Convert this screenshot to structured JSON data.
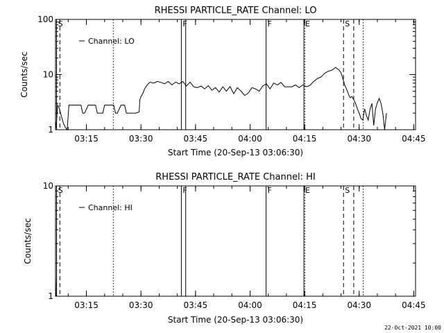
{
  "chart_data": [
    {
      "type": "line",
      "title": "RHESSI PARTICLE_RATE Channel: LO",
      "xlabel": "Start Time (20-Sep-13 03:06:30)",
      "ylabel": "Counts/sec",
      "x_unit": "minutes since 03:06:30",
      "xlim": [
        0,
        99
      ],
      "ylim": [
        1,
        100
      ],
      "yscale": "log",
      "x_ticks": [
        {
          "x": 8.5,
          "label": "03:15"
        },
        {
          "x": 23.5,
          "label": "03:30"
        },
        {
          "x": 38.5,
          "label": "03:45"
        },
        {
          "x": 53.5,
          "label": "04:00"
        },
        {
          "x": 68.5,
          "label": "04:15"
        },
        {
          "x": 83.5,
          "label": "04:30"
        },
        {
          "x": 98.5,
          "label": "04:45"
        }
      ],
      "y_ticks": [
        {
          "y": 1,
          "label": "1"
        },
        {
          "y": 10,
          "label": "10"
        },
        {
          "y": 100,
          "label": "100"
        }
      ],
      "legend": {
        "position": "top-left",
        "entries": [
          "Channel: LO"
        ]
      },
      "series": [
        {
          "name": "Channel: LO",
          "x": [
            0,
            0.3,
            0.6,
            1,
            1.4,
            1.8,
            2.2,
            2.7,
            3.2,
            3.7,
            4.2,
            5,
            6,
            7,
            7.5,
            8,
            9,
            10,
            11,
            11.5,
            12,
            13,
            13.5,
            14,
            15,
            16,
            16.5,
            17,
            18,
            19,
            19.5,
            20,
            21,
            22,
            23,
            23.2,
            23.5,
            24,
            24.5,
            25,
            25.5,
            26,
            27,
            28,
            29,
            30,
            31,
            32,
            33,
            34,
            35,
            36,
            37,
            38,
            39,
            40,
            41,
            42,
            43,
            44,
            45,
            46,
            47,
            48,
            49,
            50,
            51,
            52,
            53,
            54,
            55,
            56,
            57,
            58,
            59,
            60,
            61,
            62,
            63,
            64,
            65,
            66,
            67,
            68,
            69,
            70,
            71,
            72,
            73,
            74,
            75,
            76,
            77,
            78,
            78.5,
            79,
            79.5,
            80,
            80.5,
            81,
            81.5,
            82,
            82.5,
            83,
            83.5,
            84,
            84.5,
            85,
            85.5,
            86,
            86.5,
            87,
            87.5,
            88,
            88.5,
            89,
            89.5,
            90,
            90.5,
            91
          ],
          "values": [
            1.0,
            1.5,
            2.8,
            2.5,
            2.0,
            1.6,
            1.3,
            1.1,
            1.0,
            2.8,
            2.8,
            2.8,
            2.8,
            2.8,
            2.0,
            2.0,
            2.8,
            2.8,
            2.8,
            2.0,
            2.0,
            2.0,
            2.8,
            2.8,
            2.8,
            2.8,
            2.0,
            2.0,
            2.8,
            2.8,
            2.0,
            2.0,
            2.0,
            2.0,
            2.1,
            3.5,
            4.0,
            4.5,
            5.5,
            6.2,
            6.8,
            7.3,
            7.0,
            7.5,
            7.2,
            6.8,
            7.5,
            6.5,
            7.3,
            6.8,
            7.5,
            6.2,
            7.3,
            6.0,
            5.8,
            6.2,
            5.5,
            6.3,
            5.2,
            5.8,
            4.8,
            6.0,
            5.0,
            6.1,
            4.5,
            5.8,
            5.0,
            4.2,
            4.6,
            5.8,
            5.5,
            5.0,
            6.2,
            6.8,
            5.5,
            7.0,
            6.5,
            7.2,
            6.0,
            6.0,
            6.0,
            6.5,
            5.8,
            6.5,
            6.0,
            6.4,
            7.5,
            8.5,
            9.0,
            10.5,
            11.5,
            12.0,
            13.5,
            12.0,
            10.8,
            8.5,
            6.5,
            5.5,
            4.5,
            3.8,
            4.0,
            3.5,
            3.0,
            2.4,
            2.0,
            1.6,
            1.5,
            2.4,
            1.8,
            1.5,
            2.4,
            3.0,
            1.2,
            2.4,
            3.1,
            3.7,
            3.0,
            2.0,
            1.0,
            2.0
          ]
        }
      ]
    },
    {
      "type": "line",
      "title": "RHESSI PARTICLE_RATE Channel: HI",
      "xlabel": "Start Time (20-Sep-13 03:06:30)",
      "ylabel": "Counts/sec",
      "x_unit": "minutes since 03:06:30",
      "xlim": [
        0,
        99
      ],
      "ylim": [
        1,
        10
      ],
      "yscale": "log",
      "x_ticks": [
        {
          "x": 8.5,
          "label": "03:15"
        },
        {
          "x": 23.5,
          "label": "03:30"
        },
        {
          "x": 38.5,
          "label": "03:45"
        },
        {
          "x": 53.5,
          "label": "04:00"
        },
        {
          "x": 68.5,
          "label": "04:15"
        },
        {
          "x": 83.5,
          "label": "04:30"
        },
        {
          "x": 98.5,
          "label": "04:45"
        }
      ],
      "y_ticks": [
        {
          "y": 1,
          "label": "1"
        },
        {
          "y": 10,
          "label": "10"
        }
      ],
      "legend": {
        "position": "top-left",
        "entries": [
          "Channel: HI"
        ]
      },
      "series": [
        {
          "name": "Channel: HI",
          "x": [
            0.0,
            0.1,
            0.2
          ],
          "values": [
            1.55,
            1.0,
            1.0
          ]
        }
      ]
    }
  ],
  "event_markers": [
    {
      "x": 0.3,
      "style": "solid",
      "label": "S"
    },
    {
      "x": 1.2,
      "style": "dashed",
      "label": ""
    },
    {
      "x": 15.9,
      "style": "dotted",
      "label": ""
    },
    {
      "x": 34.6,
      "style": "solid",
      "label": "F"
    },
    {
      "x": 35.8,
      "style": "solid",
      "label": ""
    },
    {
      "x": 57.9,
      "style": "solid",
      "label": "F"
    },
    {
      "x": 68.3,
      "style": "solid",
      "label": "E"
    },
    {
      "x": 68.6,
      "style": "dotted",
      "label": ""
    },
    {
      "x": 79.2,
      "style": "dashed",
      "label": "S"
    },
    {
      "x": 82.0,
      "style": "dashed",
      "label": ""
    },
    {
      "x": 84.6,
      "style": "dotted",
      "label": ""
    }
  ],
  "footer": {
    "timestamp": "22-Oct-2021 10:00"
  }
}
